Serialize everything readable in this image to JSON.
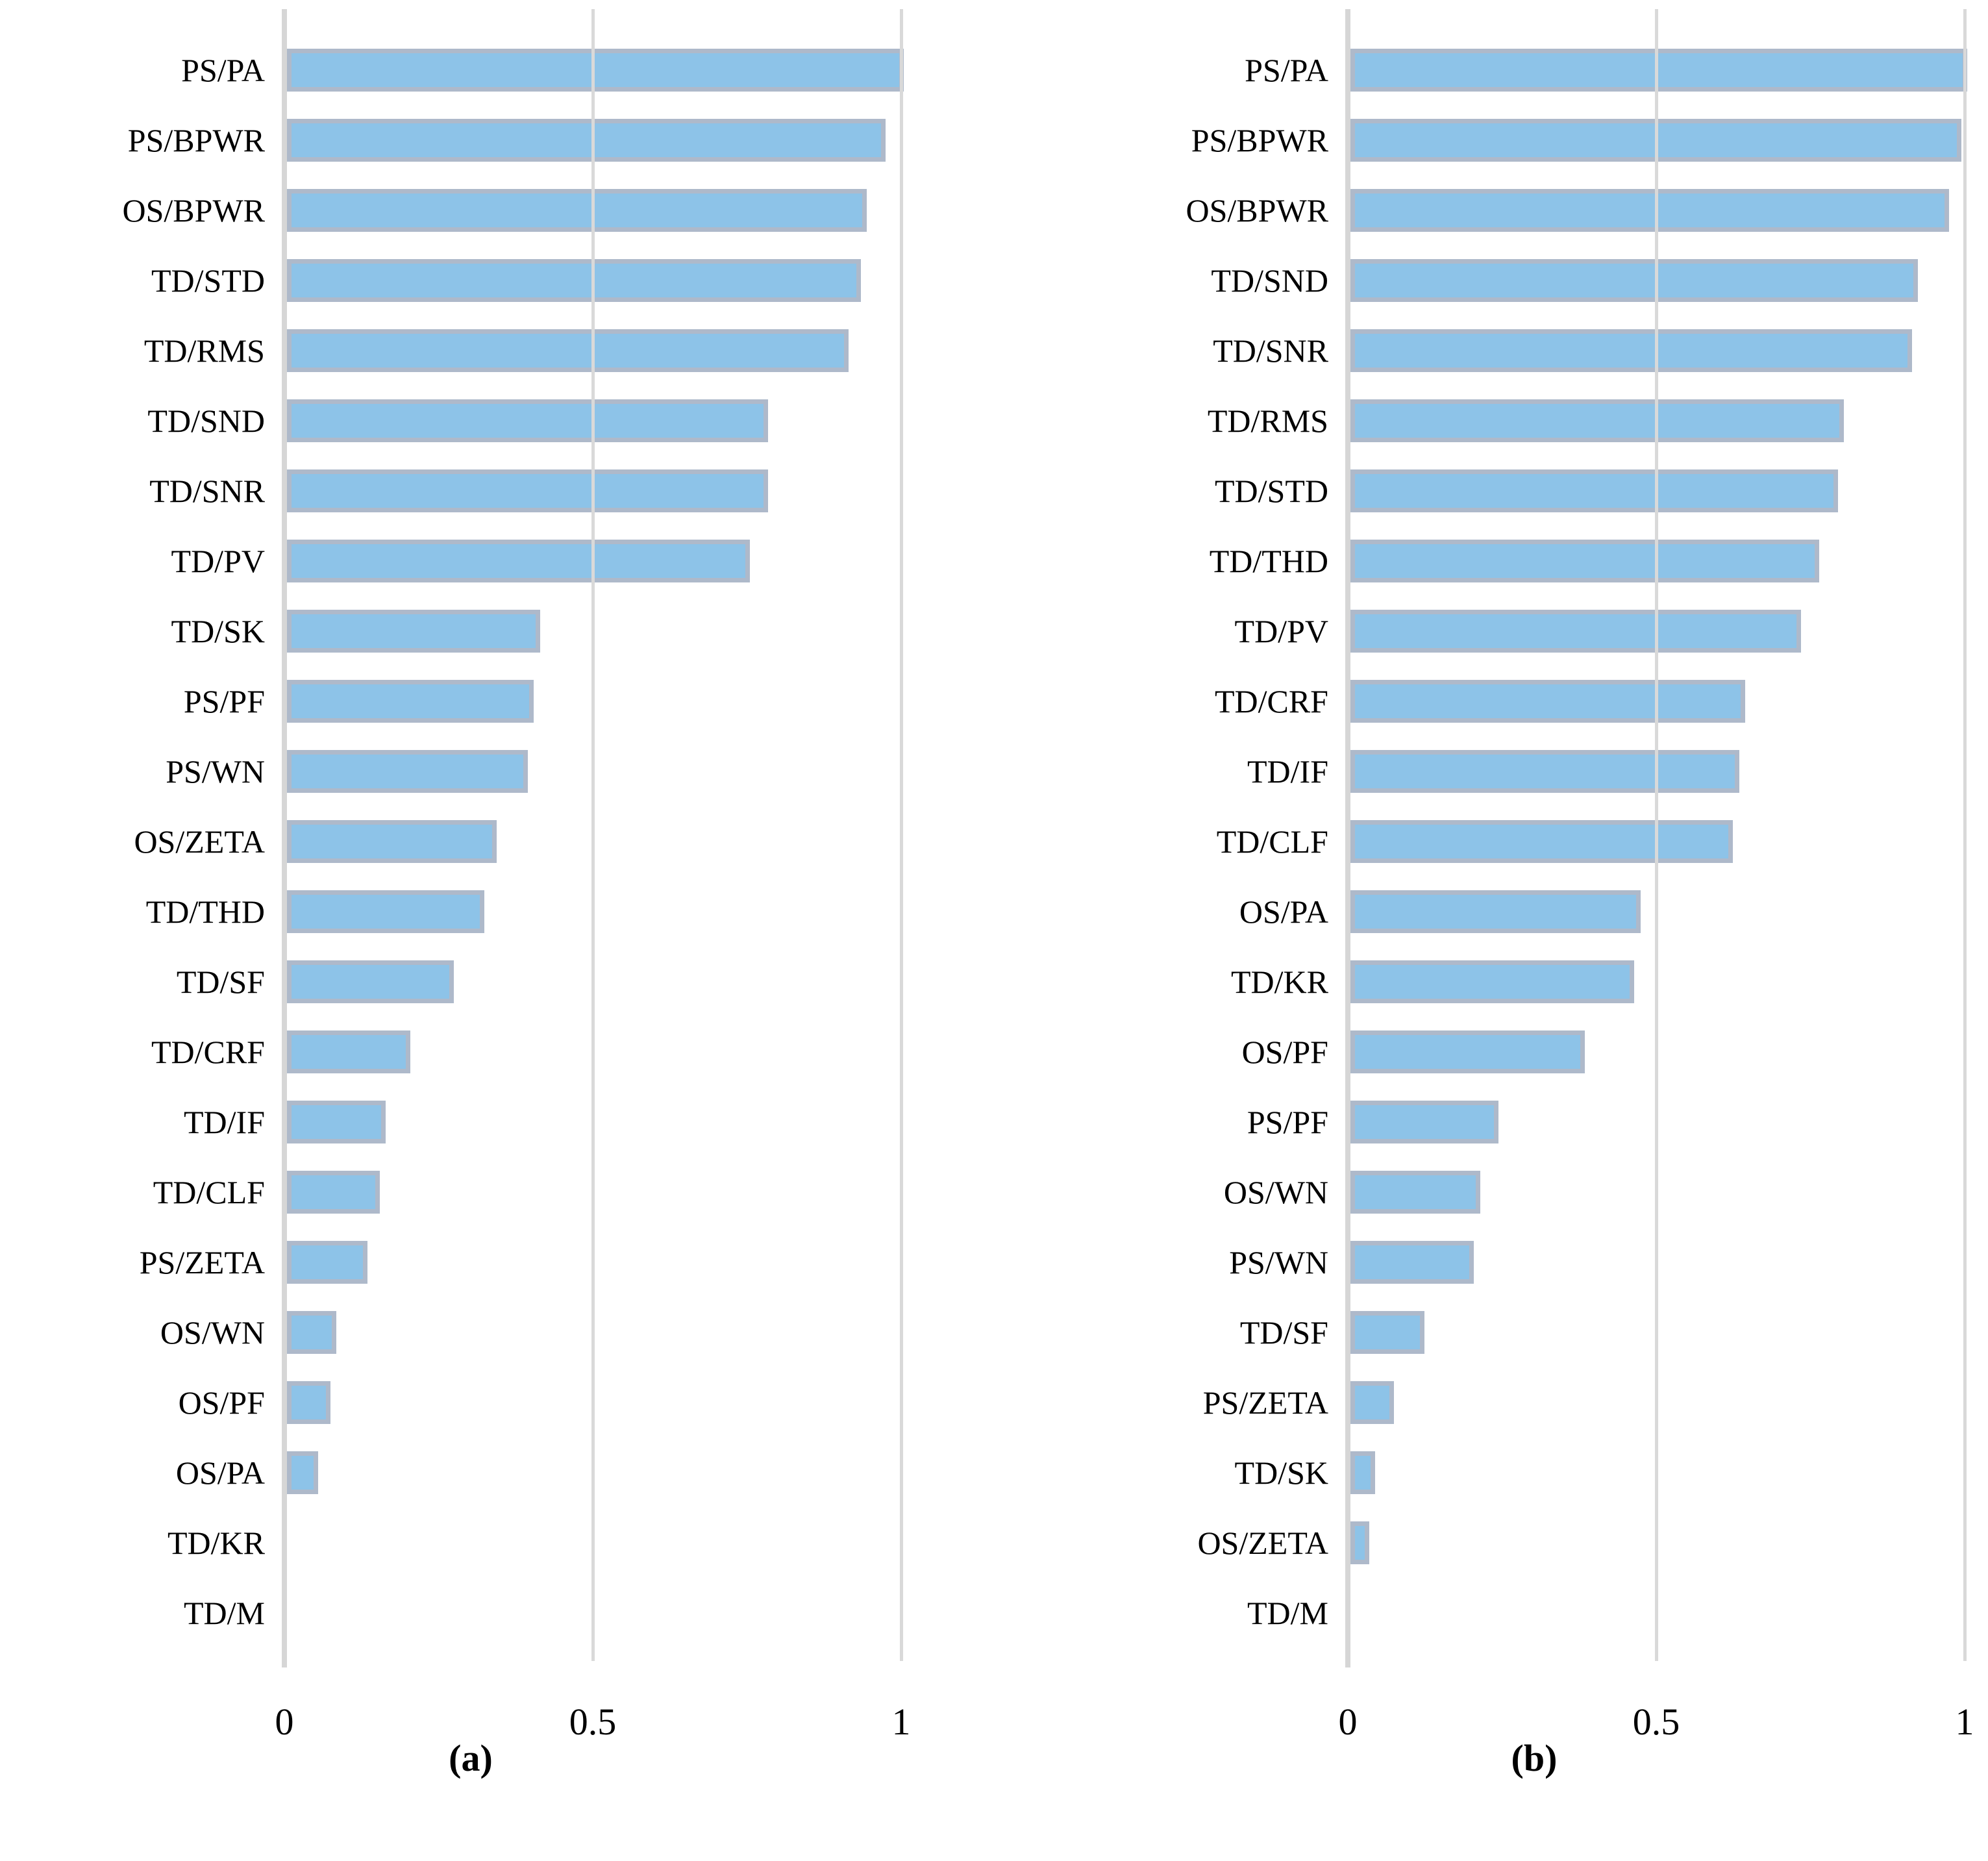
{
  "figure": {
    "background": "#ffffff",
    "colors": {
      "bar_fill": "#8DC3E8",
      "bar_border": "#AEB9CA",
      "axis_line": "#D6D6D6",
      "gridline": "#D9D9D9",
      "text": "#000000"
    },
    "panels": [
      {
        "caption": "(a)"
      },
      {
        "caption": "(b)"
      }
    ]
  },
  "chart_data": [
    {
      "type": "bar",
      "orientation": "horizontal",
      "title": "(a)",
      "xlabel": "",
      "ylabel": "",
      "xlim": [
        0,
        1
      ],
      "x_ticks": [
        0,
        0.5,
        1
      ],
      "x_tick_labels": [
        "0",
        "0.5",
        "1"
      ],
      "grid": "vertical",
      "legend": false,
      "categories": [
        "PS/PA",
        "PS/BPWR",
        "OS/BPWR",
        "TD/STD",
        "TD/RMS",
        "TD/SND",
        "TD/SNR",
        "TD/PV",
        "TD/SK",
        "PS/PF",
        "PS/WN",
        "OS/ZETA",
        "TD/THD",
        "TD/SF",
        "TD/CRF",
        "TD/IF",
        "TD/CLF",
        "PS/ZETA",
        "OS/WN",
        "OS/PF",
        "OS/PA",
        "TD/KR",
        "TD/M"
      ],
      "values": [
        1.0,
        0.97,
        0.94,
        0.93,
        0.91,
        0.78,
        0.78,
        0.75,
        0.41,
        0.4,
        0.39,
        0.34,
        0.32,
        0.27,
        0.2,
        0.16,
        0.15,
        0.13,
        0.08,
        0.07,
        0.05,
        0.0,
        0.0
      ]
    },
    {
      "type": "bar",
      "orientation": "horizontal",
      "title": "(b)",
      "xlabel": "",
      "ylabel": "",
      "xlim": [
        0,
        1
      ],
      "x_ticks": [
        0,
        0.5,
        1
      ],
      "x_tick_labels": [
        "0",
        "0.5",
        "1"
      ],
      "grid": "vertical",
      "legend": false,
      "categories": [
        "PS/PA",
        "PS/BPWR",
        "OS/BPWR",
        "TD/SND",
        "TD/SNR",
        "TD/RMS",
        "TD/STD",
        "TD/THD",
        "TD/PV",
        "TD/CRF",
        "TD/IF",
        "TD/CLF",
        "OS/PA",
        "TD/KR",
        "OS/PF",
        "PS/PF",
        "OS/WN",
        "PS/WN",
        "TD/SF",
        "PS/ZETA",
        "TD/SK",
        "OS/ZETA",
        "TD/M"
      ],
      "values": [
        1.0,
        0.99,
        0.97,
        0.92,
        0.91,
        0.8,
        0.79,
        0.76,
        0.73,
        0.64,
        0.63,
        0.62,
        0.47,
        0.46,
        0.38,
        0.24,
        0.21,
        0.2,
        0.12,
        0.07,
        0.04,
        0.03,
        0.0
      ]
    }
  ]
}
